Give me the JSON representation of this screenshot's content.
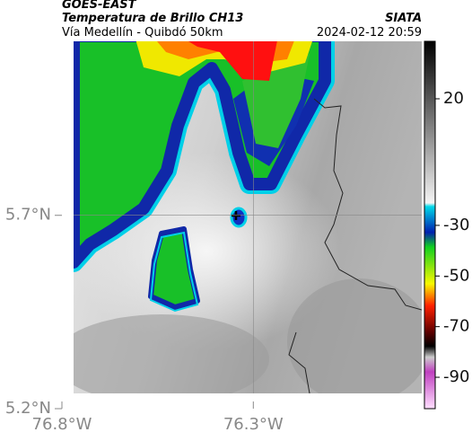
{
  "header": {
    "satellite": "GOES-EAST",
    "product": "Temperatura de Brillo CH13",
    "route": "Vía Medellín - Quibdó 50km",
    "source": "SIATA",
    "timestamp": "2024-02-12 20:59"
  },
  "map": {
    "lonlim": [
      -76.8,
      -75.86
    ],
    "latlim": [
      5.2,
      6.15
    ],
    "lon_ticks": [
      {
        "value": -76.8,
        "label": "76.8°W"
      },
      {
        "value": -76.3,
        "label": "76.3°W"
      }
    ],
    "lat_ticks": [
      {
        "value": 5.2,
        "label": "5.2°N"
      },
      {
        "value": 5.7,
        "label": "5.7°N"
      }
    ],
    "grid": true
  },
  "colorbar": {
    "lim": [
      42.7,
      -102.4
    ],
    "ticks": [
      20,
      -30,
      -50,
      -70,
      -90
    ]
  }
}
